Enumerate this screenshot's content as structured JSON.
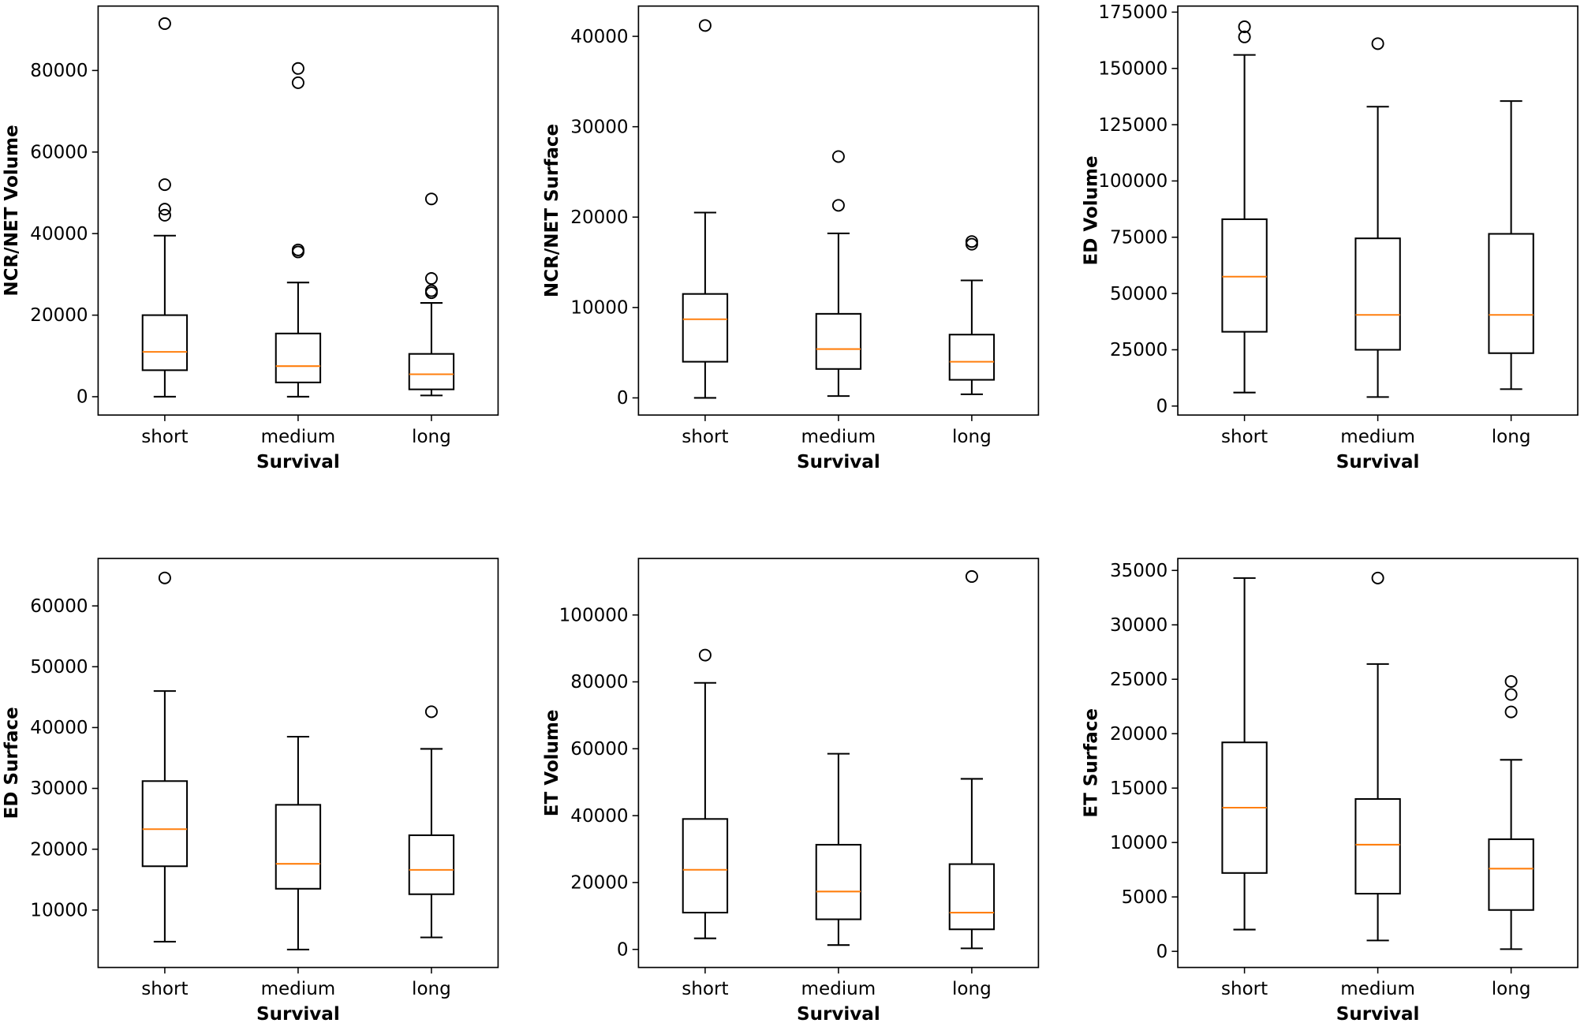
{
  "chart_data": [
    {
      "type": "box",
      "ylabel": "NCR/NET Volume",
      "xlabel": "Survival",
      "categories": [
        "short",
        "medium",
        "long"
      ],
      "ylim": [
        -4500,
        95800
      ],
      "yticks": [
        0,
        20000,
        40000,
        60000,
        80000
      ],
      "boxes": [
        {
          "whislo": 0,
          "q1": 6500,
          "med": 11000,
          "q3": 20000,
          "whishi": 39500,
          "fliers": [
            44500,
            46000,
            52000,
            91500
          ]
        },
        {
          "whislo": 0,
          "q1": 3500,
          "med": 7500,
          "q3": 15500,
          "whishi": 28000,
          "fliers": [
            35500,
            36000,
            77000,
            80500
          ]
        },
        {
          "whislo": 300,
          "q1": 1800,
          "med": 5500,
          "q3": 10500,
          "whishi": 23000,
          "fliers": [
            25500,
            26000,
            29000,
            48500
          ]
        }
      ]
    },
    {
      "type": "box",
      "ylabel": "NCR/NET Surface",
      "xlabel": "Survival",
      "categories": [
        "short",
        "medium",
        "long"
      ],
      "ylim": [
        -1900,
        43350
      ],
      "yticks": [
        0,
        10000,
        20000,
        30000,
        40000
      ],
      "boxes": [
        {
          "whislo": 0,
          "q1": 4000,
          "med": 8700,
          "q3": 11500,
          "whishi": 20500,
          "fliers": [
            41200
          ]
        },
        {
          "whislo": 200,
          "q1": 3200,
          "med": 5400,
          "q3": 9300,
          "whishi": 18200,
          "fliers": [
            21300,
            26700
          ]
        },
        {
          "whislo": 400,
          "q1": 2000,
          "med": 4000,
          "q3": 7000,
          "whishi": 13000,
          "fliers": [
            17000,
            17300
          ]
        }
      ]
    },
    {
      "type": "box",
      "ylabel": "ED Volume",
      "xlabel": "Survival",
      "categories": [
        "short",
        "medium",
        "long"
      ],
      "ylim": [
        -4000,
        177700
      ],
      "yticks": [
        0,
        25000,
        50000,
        75000,
        100000,
        125000,
        150000,
        175000
      ],
      "boxes": [
        {
          "whislo": 6000,
          "q1": 33000,
          "med": 57500,
          "q3": 83000,
          "whishi": 156000,
          "fliers": [
            164000,
            168500
          ]
        },
        {
          "whislo": 4000,
          "q1": 25000,
          "med": 40500,
          "q3": 74500,
          "whishi": 133000,
          "fliers": [
            161000
          ]
        },
        {
          "whislo": 7500,
          "q1": 23500,
          "med": 40500,
          "q3": 76500,
          "whishi": 135500,
          "fliers": []
        }
      ]
    },
    {
      "type": "box",
      "ylabel": "ED Surface",
      "xlabel": "Survival",
      "categories": [
        "short",
        "medium",
        "long"
      ],
      "ylim": [
        560,
        67800
      ],
      "yticks": [
        10000,
        20000,
        30000,
        40000,
        50000,
        60000
      ],
      "boxes": [
        {
          "whislo": 4800,
          "q1": 17200,
          "med": 23300,
          "q3": 31200,
          "whishi": 46000,
          "fliers": [
            64600
          ]
        },
        {
          "whislo": 3500,
          "q1": 13500,
          "med": 17600,
          "q3": 27300,
          "whishi": 38500,
          "fliers": []
        },
        {
          "whislo": 5500,
          "q1": 12600,
          "med": 16600,
          "q3": 22300,
          "whishi": 36500,
          "fliers": [
            42600
          ]
        }
      ]
    },
    {
      "type": "box",
      "ylabel": "ET Volume",
      "xlabel": "Survival",
      "categories": [
        "short",
        "medium",
        "long"
      ],
      "ylim": [
        -5400,
        116900
      ],
      "yticks": [
        0,
        20000,
        40000,
        60000,
        80000,
        100000
      ],
      "boxes": [
        {
          "whislo": 3300,
          "q1": 11000,
          "med": 23800,
          "q3": 39000,
          "whishi": 79700,
          "fliers": [
            88000
          ]
        },
        {
          "whislo": 1300,
          "q1": 9000,
          "med": 17300,
          "q3": 31300,
          "whishi": 58500,
          "fliers": []
        },
        {
          "whislo": 300,
          "q1": 6000,
          "med": 11000,
          "q3": 25500,
          "whishi": 51000,
          "fliers": [
            111500
          ]
        }
      ]
    },
    {
      "type": "box",
      "ylabel": "ET Surface",
      "xlabel": "Survival",
      "categories": [
        "short",
        "medium",
        "long"
      ],
      "ylim": [
        -1480,
        36100
      ],
      "yticks": [
        0,
        5000,
        10000,
        15000,
        20000,
        25000,
        30000,
        35000
      ],
      "boxes": [
        {
          "whislo": 2000,
          "q1": 7200,
          "med": 13200,
          "q3": 19200,
          "whishi": 34300,
          "fliers": []
        },
        {
          "whislo": 1000,
          "q1": 5300,
          "med": 9800,
          "q3": 14000,
          "whishi": 26400,
          "fliers": [
            34300
          ]
        },
        {
          "whislo": 200,
          "q1": 3800,
          "med": 7600,
          "q3": 10300,
          "whishi": 17600,
          "fliers": [
            22000,
            23600,
            24800
          ]
        }
      ]
    }
  ],
  "colors": {
    "median": "#ff7f0e",
    "box": "#000000"
  }
}
